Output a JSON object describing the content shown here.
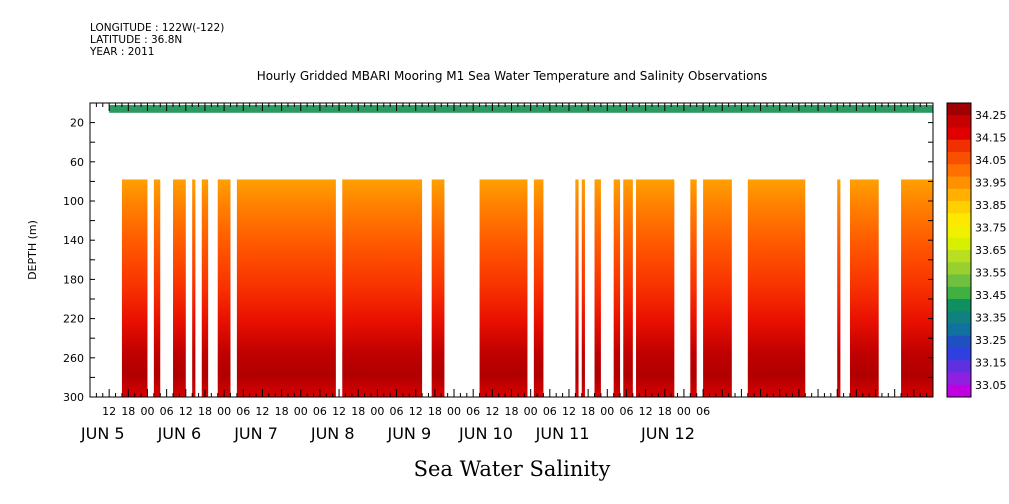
{
  "header": {
    "longitude": "LONGITUDE : 122W(-122)",
    "latitude": "LATITUDE : 36.8N",
    "year": "YEAR : 2011"
  },
  "chart_data": {
    "type": "heatmap",
    "title": "Hourly Gridded MBARI Mooring M1 Sea Water Temperature and Salinity Observations",
    "xlabel": "",
    "ylabel": "DEPTH (m)",
    "subtitle": "Sea Water Salinity",
    "x_hour_ticks": [
      "12",
      "18",
      "00",
      "06",
      "12",
      "18",
      "00",
      "06",
      "12",
      "18",
      "00",
      "06",
      "12",
      "18",
      "00",
      "06",
      "12",
      "18",
      "00",
      "06",
      "12",
      "18",
      "00",
      "06",
      "12",
      "18",
      "00",
      "06",
      "12",
      "18",
      "00",
      "06"
    ],
    "x_day_labels": [
      "JUN  5",
      "JUN  6",
      "JUN  7",
      "JUN  8",
      "JUN  9",
      "JUN 10",
      "JUN 11",
      "JUN 12"
    ],
    "y_ticks": [
      20,
      60,
      100,
      140,
      180,
      220,
      260,
      300
    ],
    "ylim": [
      300,
      0
    ],
    "colorbar_levels": [
      "34.25",
      "34.15",
      "34.05",
      "33.95",
      "33.85",
      "33.75",
      "33.65",
      "33.55",
      "33.45",
      "33.35",
      "33.25",
      "33.15",
      "33.05"
    ],
    "colorbar_colors": [
      "#a00000",
      "#c80000",
      "#e00000",
      "#f03000",
      "#f85000",
      "#ff7000",
      "#ff9000",
      "#ffb000",
      "#ffd000",
      "#ffe800",
      "#f0f000",
      "#d8f000",
      "#b8e020",
      "#98d030",
      "#70c040",
      "#40b040",
      "#109060",
      "#108080",
      "#1070a0",
      "#2050c0",
      "#3040e0",
      "#6030e0",
      "#9020e0",
      "#c000e0"
    ],
    "surface_band": "33.45",
    "gaps_hours_from_jun5_00": [
      [
        0,
        16
      ],
      [
        24,
        26
      ],
      [
        28,
        32
      ],
      [
        36,
        38
      ],
      [
        39,
        41
      ],
      [
        43,
        46
      ],
      [
        50,
        52
      ],
      [
        83,
        85
      ],
      [
        110,
        113
      ],
      [
        117,
        128
      ],
      [
        143,
        145
      ],
      [
        148,
        158
      ],
      [
        159,
        160
      ],
      [
        161,
        164
      ],
      [
        166,
        170
      ],
      [
        172,
        173
      ],
      [
        176,
        177
      ],
      [
        189,
        194
      ],
      [
        196,
        198
      ],
      [
        207,
        212
      ],
      [
        230,
        240
      ],
      [
        241,
        244
      ],
      [
        253,
        260
      ]
    ]
  }
}
